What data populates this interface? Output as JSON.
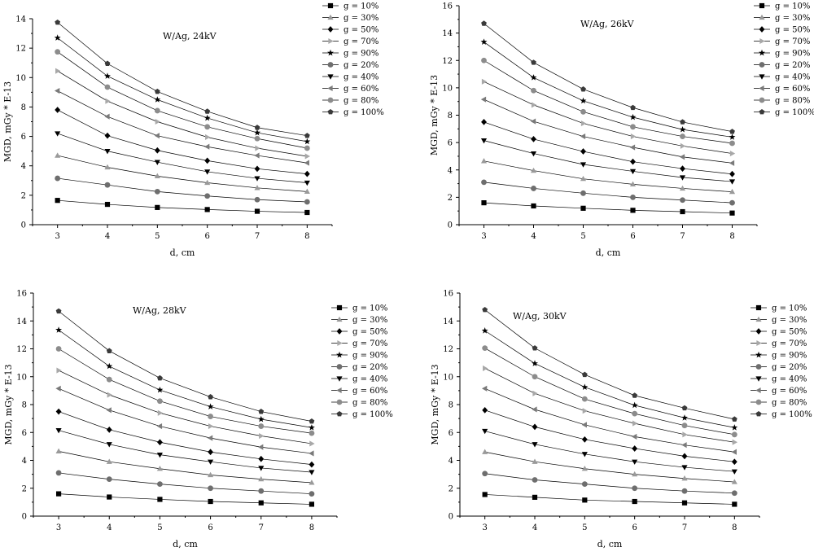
{
  "chart_data": [
    {
      "type": "line",
      "title": "W/Ag, 24kV",
      "xlabel": "d, cm",
      "ylabel": "MGD, mGy * E-13",
      "xlim": [
        2.5,
        8.5
      ],
      "ylim": [
        0,
        14
      ],
      "xticks": [
        3,
        4,
        5,
        6,
        7,
        8
      ],
      "yticks": [
        0,
        2,
        4,
        6,
        8,
        10,
        12,
        14
      ],
      "legend_position": "top-right",
      "x": [
        3,
        4,
        5,
        6,
        7,
        8
      ],
      "series": [
        {
          "name": "g = 10%",
          "values": [
            1.65,
            1.38,
            1.17,
            1.03,
            0.91,
            0.83
          ]
        },
        {
          "name": "g = 30%",
          "values": [
            4.7,
            3.9,
            3.3,
            2.85,
            2.5,
            2.25
          ]
        },
        {
          "name": "g = 50%",
          "values": [
            7.8,
            6.05,
            5.05,
            4.35,
            3.8,
            3.45
          ]
        },
        {
          "name": "g = 70%",
          "values": [
            10.45,
            8.4,
            7.0,
            5.95,
            5.2,
            4.65
          ]
        },
        {
          "name": "g = 90%",
          "values": [
            12.7,
            10.1,
            8.5,
            7.25,
            6.25,
            5.65
          ]
        },
        {
          "name": "g = 20%",
          "values": [
            3.15,
            2.7,
            2.25,
            1.95,
            1.7,
            1.55
          ]
        },
        {
          "name": "g = 40%",
          "values": [
            6.2,
            5.0,
            4.25,
            3.6,
            3.15,
            2.85
          ]
        },
        {
          "name": "g = 60%",
          "values": [
            9.1,
            7.35,
            6.05,
            5.3,
            4.7,
            4.2
          ]
        },
        {
          "name": "g = 80%",
          "values": [
            11.75,
            9.35,
            7.75,
            6.65,
            5.85,
            5.2
          ]
        },
        {
          "name": "g = 100%",
          "values": [
            13.75,
            10.95,
            9.05,
            7.7,
            6.6,
            6.05
          ]
        }
      ]
    },
    {
      "type": "line",
      "title": "W/Ag, 26kV",
      "xlabel": "d, cm",
      "ylabel": "MGD, mGy * E-13",
      "xlim": [
        2.5,
        8.5
      ],
      "ylim": [
        0,
        16
      ],
      "xticks": [
        3,
        4,
        5,
        6,
        7,
        8
      ],
      "yticks": [
        0,
        2,
        4,
        6,
        8,
        10,
        12,
        14,
        16
      ],
      "legend_position": "top-right",
      "x": [
        3,
        4,
        5,
        6,
        7,
        8
      ],
      "series": [
        {
          "name": "g = 10%",
          "values": [
            1.6,
            1.37,
            1.2,
            1.05,
            0.95,
            0.85
          ]
        },
        {
          "name": "g = 30%",
          "values": [
            4.65,
            3.95,
            3.35,
            2.95,
            2.65,
            2.4
          ]
        },
        {
          "name": "g = 50%",
          "values": [
            7.5,
            6.25,
            5.35,
            4.6,
            4.1,
            3.7
          ]
        },
        {
          "name": "g = 70%",
          "values": [
            10.45,
            8.75,
            7.4,
            6.45,
            5.75,
            5.2
          ]
        },
        {
          "name": "g = 90%",
          "values": [
            13.35,
            10.75,
            9.05,
            7.85,
            6.95,
            6.4
          ]
        },
        {
          "name": "g = 20%",
          "values": [
            3.1,
            2.65,
            2.3,
            2.0,
            1.8,
            1.6
          ]
        },
        {
          "name": "g = 40%",
          "values": [
            6.15,
            5.2,
            4.4,
            3.9,
            3.45,
            3.15
          ]
        },
        {
          "name": "g = 60%",
          "values": [
            9.15,
            7.55,
            6.45,
            5.65,
            4.95,
            4.5
          ]
        },
        {
          "name": "g = 80%",
          "values": [
            12.0,
            9.8,
            8.25,
            7.15,
            6.45,
            5.95
          ]
        },
        {
          "name": "g = 100%",
          "values": [
            14.7,
            11.85,
            9.9,
            8.55,
            7.5,
            6.8
          ]
        }
      ]
    },
    {
      "type": "line",
      "title": "W/Ag, 28kV",
      "xlabel": "d, cm",
      "ylabel": "MGD, mGy * E-13",
      "xlim": [
        2.5,
        8.5
      ],
      "ylim": [
        0,
        16
      ],
      "xticks": [
        3,
        4,
        5,
        6,
        7,
        8
      ],
      "yticks": [
        0,
        2,
        4,
        6,
        8,
        10,
        12,
        14,
        16
      ],
      "legend_position": "right",
      "x": [
        3,
        4,
        5,
        6,
        7,
        8
      ],
      "series": [
        {
          "name": "g = 10%",
          "values": [
            1.6,
            1.37,
            1.2,
            1.05,
            0.95,
            0.85
          ]
        },
        {
          "name": "g = 30%",
          "values": [
            4.65,
            3.9,
            3.4,
            2.95,
            2.65,
            2.4
          ]
        },
        {
          "name": "g = 50%",
          "values": [
            7.5,
            6.2,
            5.3,
            4.6,
            4.1,
            3.7
          ]
        },
        {
          "name": "g = 70%",
          "values": [
            10.45,
            8.7,
            7.4,
            6.45,
            5.75,
            5.2
          ]
        },
        {
          "name": "g = 90%",
          "values": [
            13.35,
            10.75,
            9.05,
            7.85,
            6.95,
            6.35
          ]
        },
        {
          "name": "g = 20%",
          "values": [
            3.1,
            2.65,
            2.3,
            2.0,
            1.8,
            1.6
          ]
        },
        {
          "name": "g = 40%",
          "values": [
            6.15,
            5.15,
            4.4,
            3.9,
            3.45,
            3.15
          ]
        },
        {
          "name": "g = 60%",
          "values": [
            9.15,
            7.6,
            6.45,
            5.6,
            4.95,
            4.5
          ]
        },
        {
          "name": "g = 80%",
          "values": [
            12.0,
            9.8,
            8.25,
            7.15,
            6.45,
            5.95
          ]
        },
        {
          "name": "g = 100%",
          "values": [
            14.7,
            11.85,
            9.9,
            8.55,
            7.5,
            6.8
          ]
        }
      ]
    },
    {
      "type": "line",
      "title": "W/Ag, 30kV",
      "xlabel": "d, cm",
      "ylabel": "MGD, mGy * E-13",
      "xlim": [
        2.5,
        8.5
      ],
      "ylim": [
        0,
        16
      ],
      "xticks": [
        3,
        4,
        5,
        6,
        7,
        8
      ],
      "yticks": [
        0,
        2,
        4,
        6,
        8,
        10,
        12,
        14,
        16
      ],
      "legend_position": "right",
      "x": [
        3,
        4,
        5,
        6,
        7,
        8
      ],
      "series": [
        {
          "name": "g = 10%",
          "values": [
            1.55,
            1.35,
            1.15,
            1.05,
            0.95,
            0.85
          ]
        },
        {
          "name": "g = 30%",
          "values": [
            4.6,
            3.9,
            3.4,
            3.0,
            2.7,
            2.45
          ]
        },
        {
          "name": "g = 50%",
          "values": [
            7.6,
            6.4,
            5.5,
            4.85,
            4.3,
            3.9
          ]
        },
        {
          "name": "g = 70%",
          "values": [
            10.6,
            8.8,
            7.55,
            6.65,
            5.85,
            5.3
          ]
        },
        {
          "name": "g = 90%",
          "values": [
            13.3,
            10.95,
            9.25,
            7.95,
            7.05,
            6.35
          ]
        },
        {
          "name": "g = 20%",
          "values": [
            3.05,
            2.6,
            2.3,
            2.0,
            1.8,
            1.65
          ]
        },
        {
          "name": "g = 40%",
          "values": [
            6.1,
            5.15,
            4.45,
            3.9,
            3.5,
            3.2
          ]
        },
        {
          "name": "g = 60%",
          "values": [
            9.15,
            7.65,
            6.55,
            5.7,
            5.1,
            4.6
          ]
        },
        {
          "name": "g = 80%",
          "values": [
            12.05,
            10.0,
            8.4,
            7.35,
            6.5,
            5.85
          ]
        },
        {
          "name": "g = 100%",
          "values": [
            14.8,
            12.05,
            10.15,
            8.65,
            7.75,
            6.95
          ]
        }
      ]
    }
  ],
  "series_styles": [
    {
      "marker": "square",
      "color": "#000000"
    },
    {
      "marker": "triangle-up",
      "color": "#9a9a9a"
    },
    {
      "marker": "diamond",
      "color": "#000000"
    },
    {
      "marker": "triangle-right",
      "color": "#a8a8a8"
    },
    {
      "marker": "star",
      "color": "#000000"
    },
    {
      "marker": "circle",
      "color": "#6e6e6e"
    },
    {
      "marker": "triangle-down",
      "color": "#000000"
    },
    {
      "marker": "triangle-left",
      "color": "#7a7a7a"
    },
    {
      "marker": "circle",
      "color": "#8c8c8c"
    },
    {
      "marker": "pentagon",
      "color": "#3a3a3a"
    }
  ],
  "line_color": "#000000"
}
